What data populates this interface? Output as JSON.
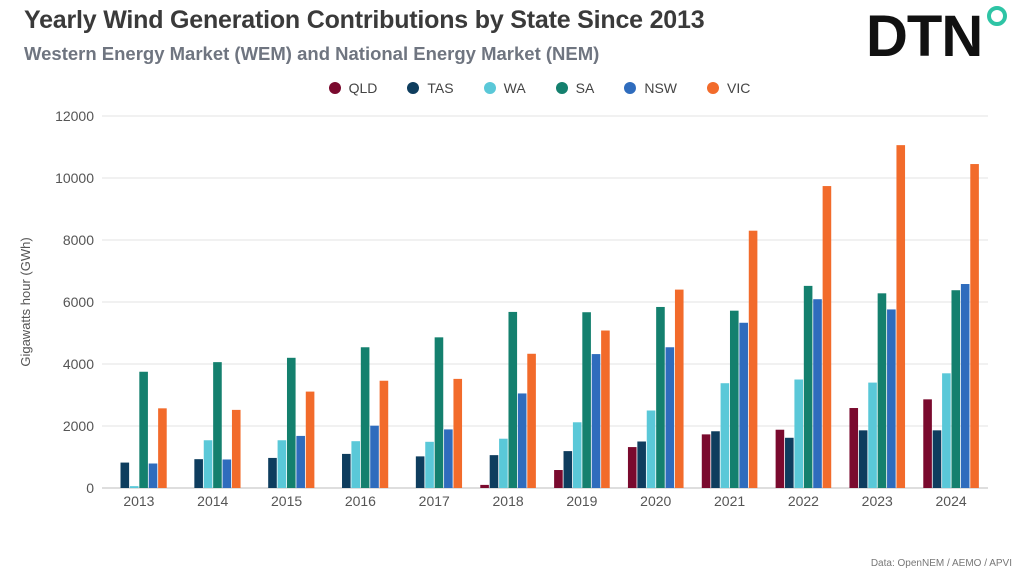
{
  "title": "Yearly Wind Generation Contributions by State Since 2013",
  "subtitle": "Western Energy Market (WEM) and National Energy Market (NEM)",
  "logo": {
    "text": "DTN",
    "dot_color": "#2ec4a5"
  },
  "source": "Data: OpenNEM / AEMO /  APVI",
  "chart_data": {
    "type": "bar",
    "title": "Yearly Wind Generation Contributions by State Since 2013",
    "subtitle": "Western Energy Market (WEM) and National Energy Market (NEM)",
    "xlabel": "",
    "ylabel": "Gigawatts hour (GWh)",
    "ylim": [
      0,
      12000
    ],
    "yticks": [
      0,
      2000,
      4000,
      6000,
      8000,
      10000,
      12000
    ],
    "grid": true,
    "legend_position": "top-center",
    "categories": [
      "2013",
      "2014",
      "2015",
      "2016",
      "2017",
      "2018",
      "2019",
      "2020",
      "2021",
      "2022",
      "2023",
      "2024"
    ],
    "series": [
      {
        "name": "QLD",
        "color": "#7a0a2e",
        "values": [
          0,
          0,
          0,
          0,
          0,
          100,
          580,
          1320,
          1730,
          1880,
          2580,
          2860
        ]
      },
      {
        "name": "TAS",
        "color": "#0e3d5e",
        "values": [
          820,
          930,
          970,
          1100,
          1020,
          1060,
          1190,
          1500,
          1830,
          1620,
          1860,
          1860
        ]
      },
      {
        "name": "WA",
        "color": "#5ac8d8",
        "values": [
          60,
          1540,
          1540,
          1510,
          1490,
          1590,
          2120,
          2500,
          3380,
          3500,
          3400,
          3700
        ]
      },
      {
        "name": "SA",
        "color": "#14806e",
        "values": [
          3750,
          4060,
          4200,
          4540,
          4860,
          5680,
          5670,
          5840,
          5720,
          6520,
          6280,
          6380
        ]
      },
      {
        "name": "NSW",
        "color": "#2f6cbd",
        "values": [
          790,
          920,
          1680,
          2010,
          1890,
          3050,
          4320,
          4540,
          5330,
          6090,
          5760,
          6580
        ]
      },
      {
        "name": "VIC",
        "color": "#f26b2b",
        "values": [
          2570,
          2520,
          3110,
          3460,
          3520,
          4330,
          5080,
          6400,
          8300,
          9740,
          11060,
          10450
        ]
      }
    ]
  }
}
